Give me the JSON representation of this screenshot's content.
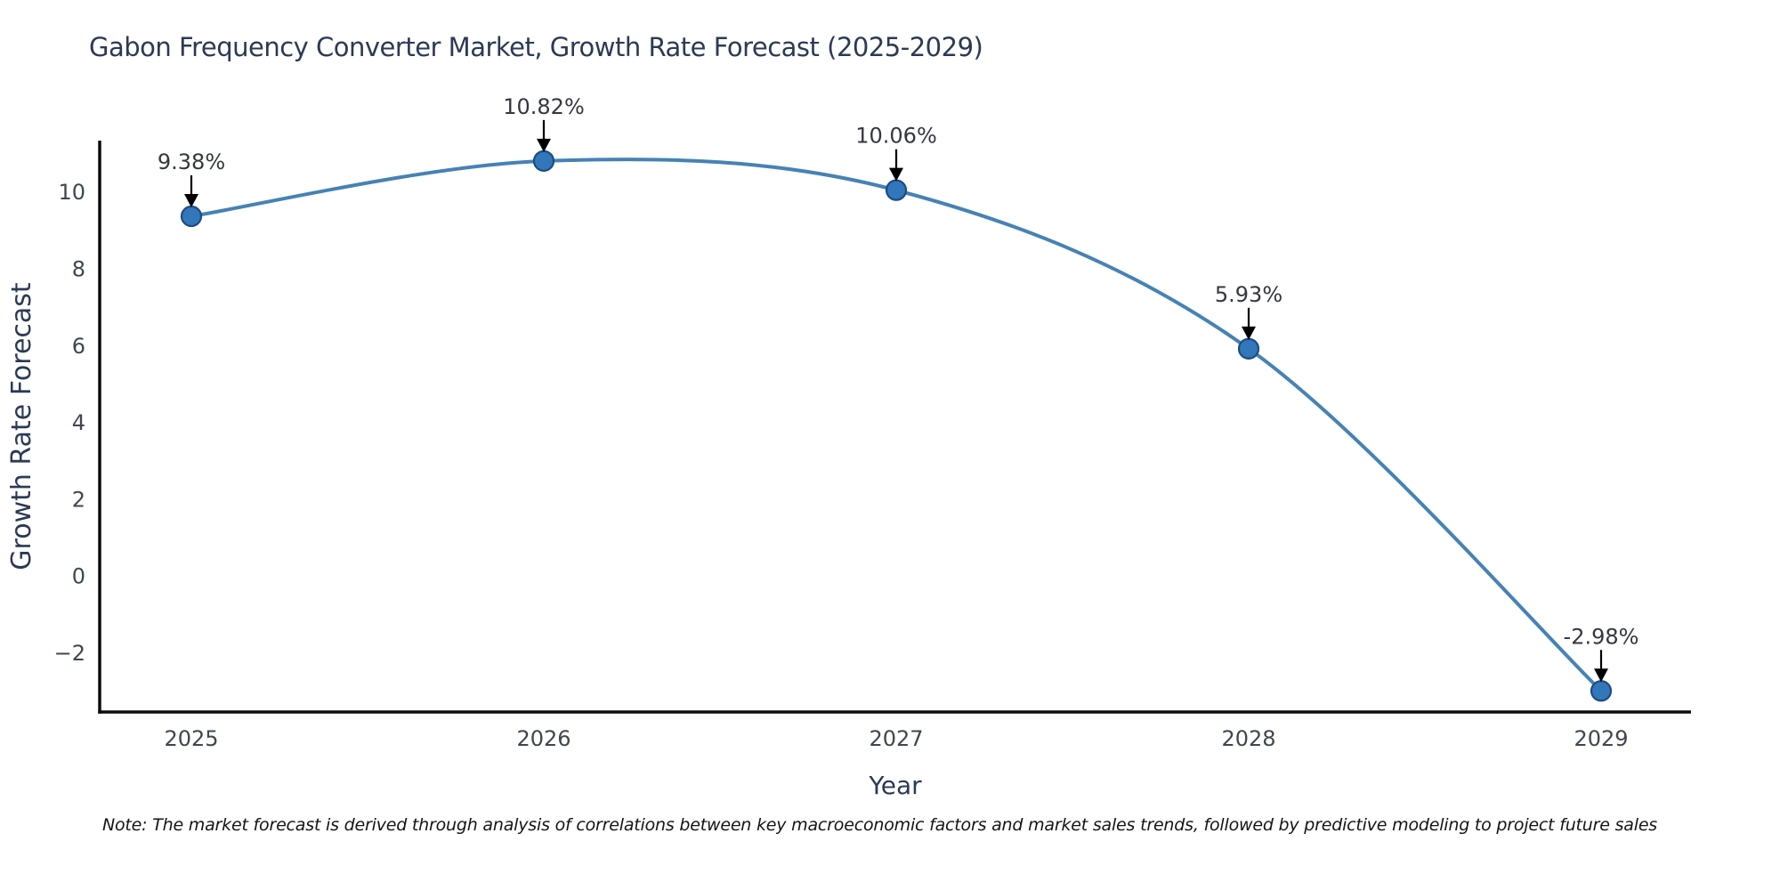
{
  "title": "Gabon Frequency Converter Market, Growth Rate Forecast (2025-2029)",
  "note": "Note: The market forecast is derived through analysis of correlations between key macroeconomic factors and market sales trends, followed by predictive modeling to project future sales",
  "chart_data": {
    "type": "line",
    "title": "Gabon Frequency Converter Market, Growth Rate Forecast (2025-2029)",
    "xlabel": "Year",
    "ylabel": "Growth Rate Forecast",
    "categories": [
      "2025",
      "2026",
      "2027",
      "2028",
      "2029"
    ],
    "series": [
      {
        "name": "Growth Rate Forecast",
        "values": [
          9.38,
          10.82,
          10.06,
          5.93,
          -2.98
        ]
      }
    ],
    "point_labels": [
      "9.38%",
      "10.82%",
      "10.06%",
      "5.93%",
      "-2.98%"
    ],
    "yticks": [
      10,
      8,
      6,
      4,
      2,
      0,
      -2
    ],
    "ytick_labels": [
      "10",
      "8",
      "6",
      "4",
      "2",
      "0",
      "−2"
    ],
    "ylim": [
      -3.53,
      11.35
    ],
    "line_shape": "spline",
    "grid": false,
    "legend_position": "none",
    "annotations_style": "arrow-down-to-point",
    "colors": {
      "line": "#4682b4",
      "marker_fill": "#3277bc",
      "marker_edge": "#1c4d7f",
      "axis_line": "#0d0d0d",
      "annotation_text": "#33373f",
      "annotation_arrow": "#000000",
      "tick_text": "#3f474e",
      "axis_title_text": "#2b3a55"
    }
  }
}
